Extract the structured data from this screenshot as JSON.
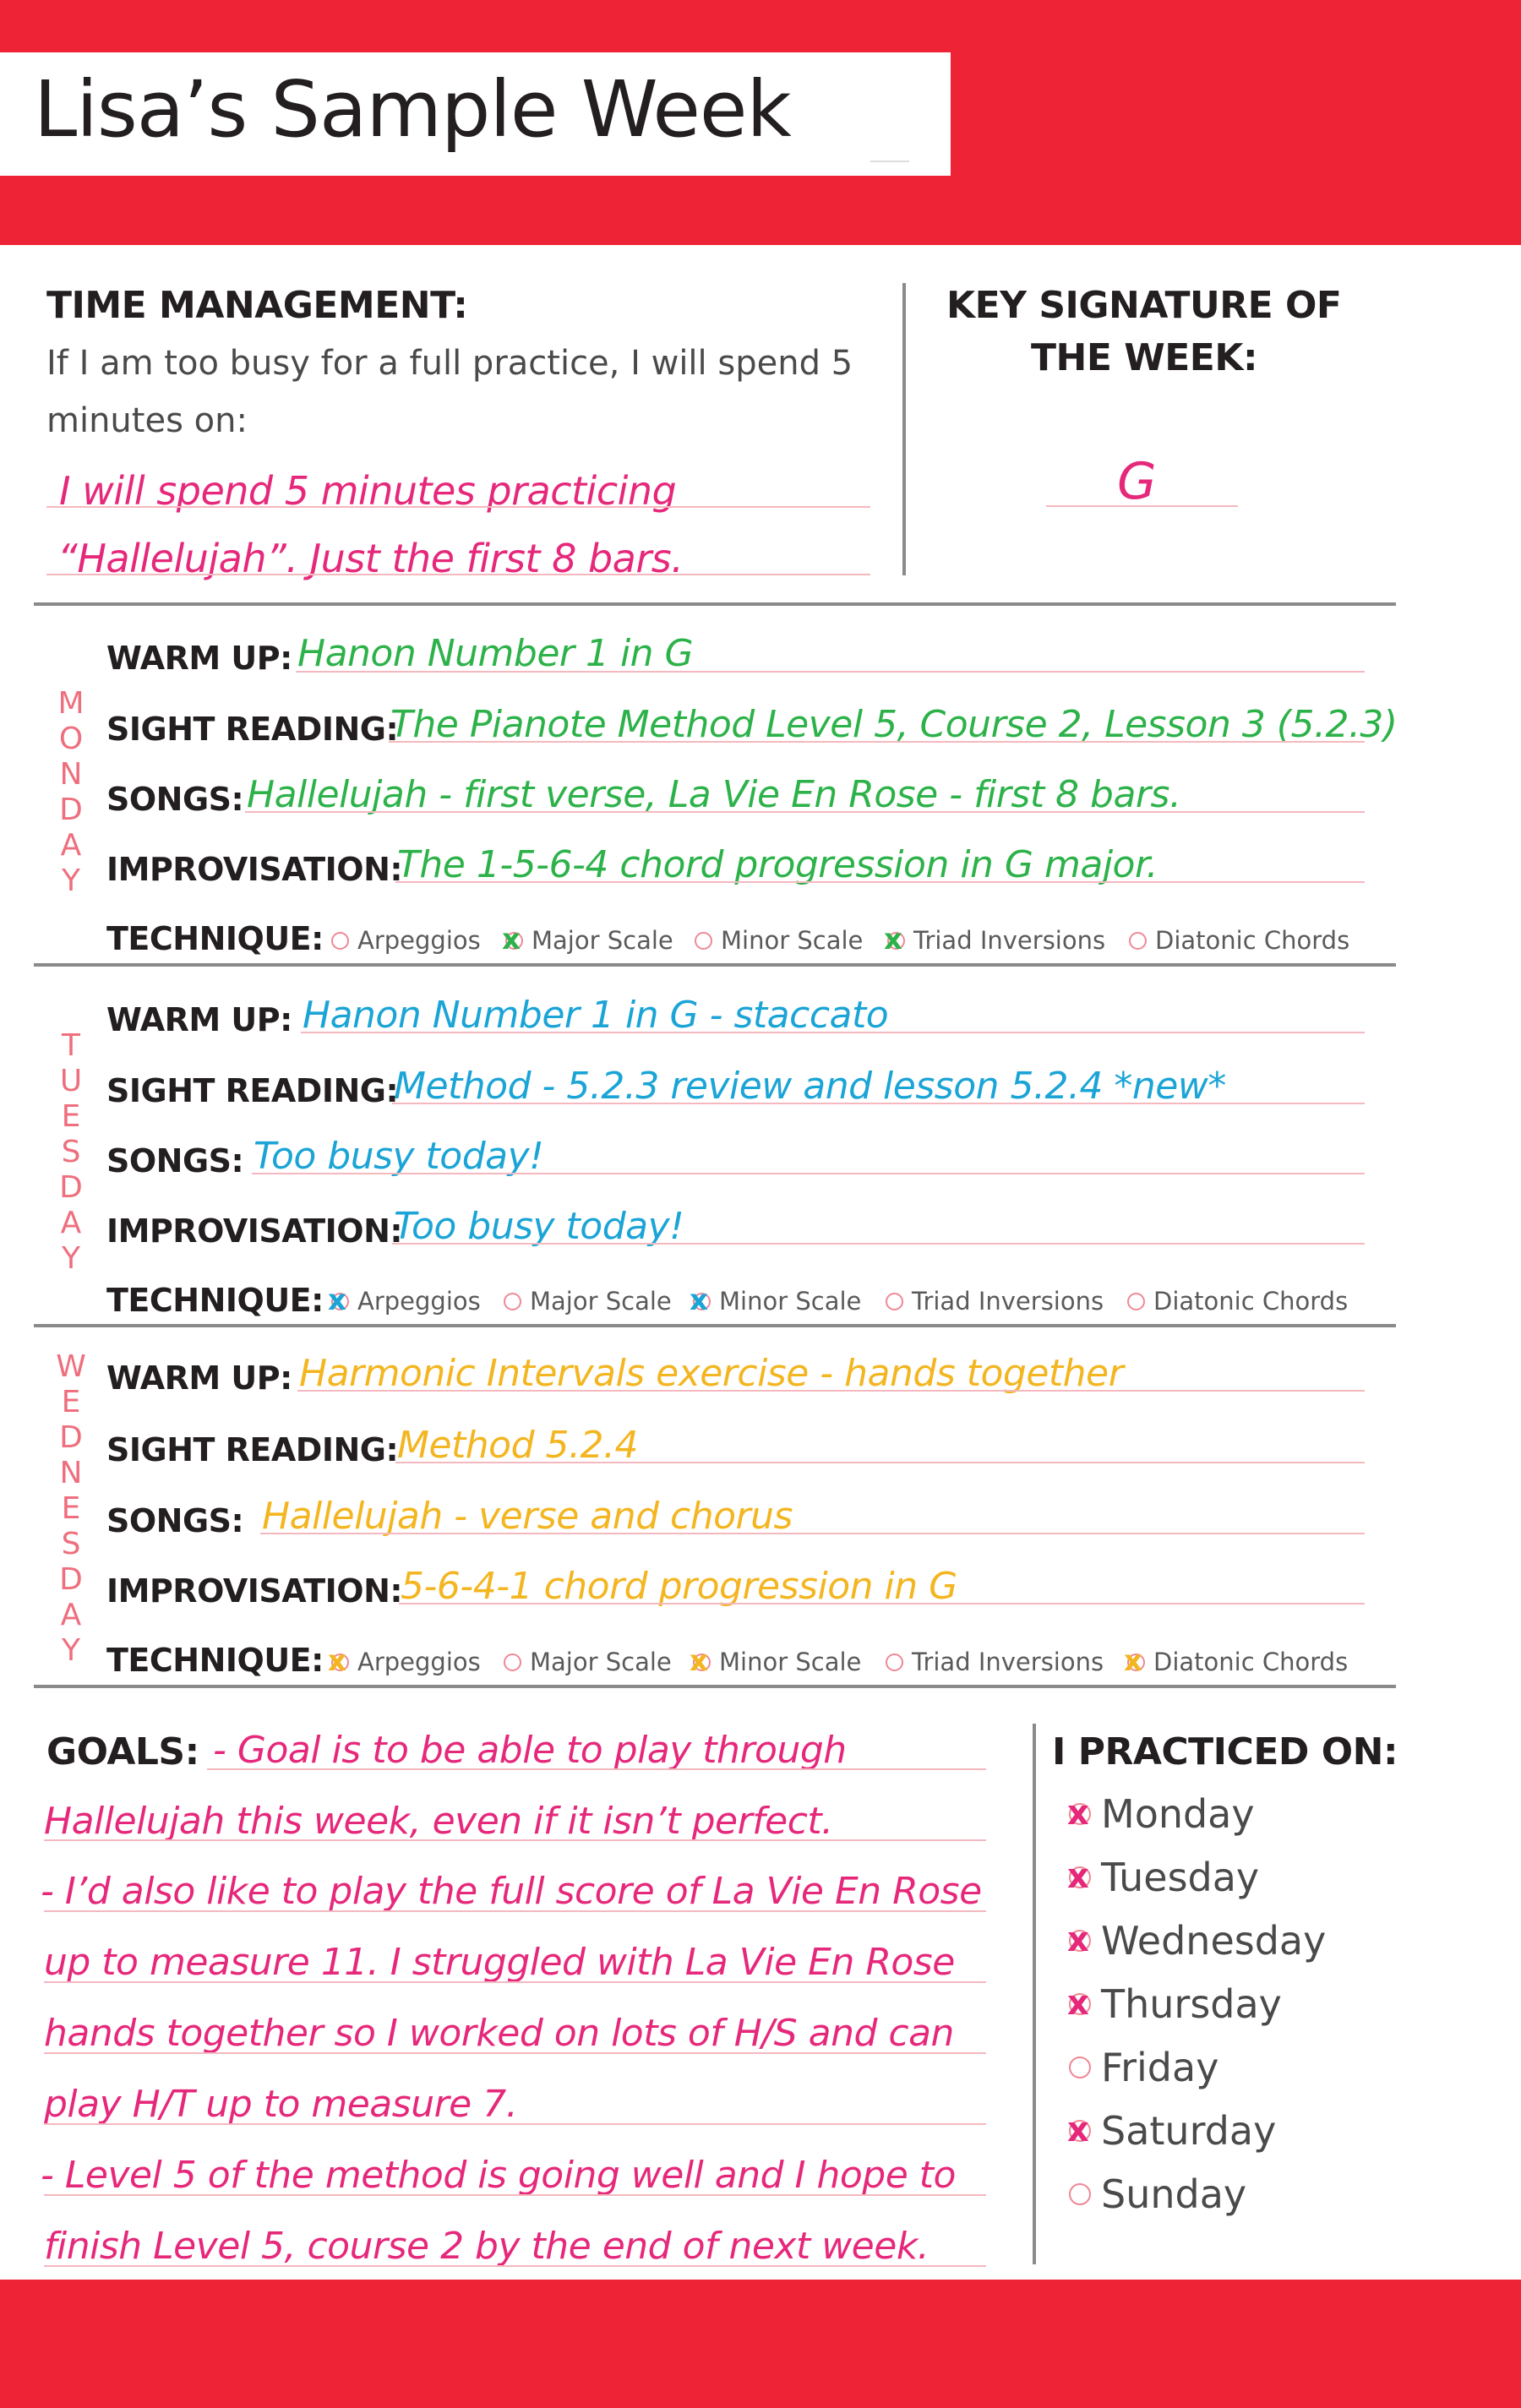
{
  "title": "Lisa’s Sample Week",
  "time_management": {
    "heading": "TIME MANAGEMENT:",
    "prompt_line1": "If I am too busy for a full practice, I will spend 5",
    "prompt_line2": "minutes on:",
    "answer_line1": "I will spend 5 minutes practicing",
    "answer_line2": "“Hallelujah”.  Just the first 8 bars."
  },
  "key_signature": {
    "heading_line1": "KEY SIGNATURE OF",
    "heading_line2": "THE WEEK:",
    "value": "G"
  },
  "labels": {
    "warm_up": "WARM UP:",
    "sight_reading": "SIGHT READING:",
    "songs": "SONGS:",
    "improvisation": "IMPROVISATION:",
    "technique": "TECHNIQUE:"
  },
  "technique_options": [
    "Arpeggios",
    "Major Scale",
    "Minor Scale",
    "Triad Inversions",
    "Diatonic Chords"
  ],
  "days": [
    {
      "name": "MONDAY",
      "color": "#2db24a",
      "warm_up": "Hanon Number 1 in G",
      "sight_reading": "The Pianote Method Level 5, Course 2, Lesson 3 (5.2.3)",
      "songs": "Hallelujah - first verse, La Vie En Rose - first 8 bars.",
      "improvisation": "The 1-5-6-4 chord progression in G major.",
      "technique_checked": [
        false,
        true,
        false,
        true,
        false
      ]
    },
    {
      "name": "TUESDAY",
      "color": "#1ba4d6",
      "warm_up": "Hanon Number 1 in G - staccato",
      "sight_reading": "Method - 5.2.3 review and lesson 5.2.4 *new*",
      "songs": "Too busy today!",
      "improvisation": "Too busy today!",
      "technique_checked": [
        true,
        false,
        true,
        false,
        false
      ]
    },
    {
      "name": "WEDNESDAY",
      "color": "#f3b520",
      "warm_up": "Harmonic Intervals exercise - hands together",
      "sight_reading": "Method 5.2.4",
      "songs": "Hallelujah - verse and chorus",
      "improvisation": "5-6-4-1 chord progression in G",
      "technique_checked": [
        true,
        false,
        true,
        false,
        true
      ]
    }
  ],
  "goals": {
    "heading": "GOALS:",
    "lines": [
      "- Goal is to be able to play through",
      "Hallelujah this week, even if it isn’t perfect.",
      "- I’d also like to play the full score of La Vie En Rose",
      "up to measure 11.   I struggled with La Vie En Rose",
      "hands together so I worked on lots of H/S and can",
      "play H/T up to measure 7.",
      "- Level 5 of the method is going well and I hope to",
      "finish Level 5, course 2 by the end of next week."
    ]
  },
  "practiced": {
    "heading": "I PRACTICED ON:",
    "days": [
      {
        "label": "Monday",
        "checked": true
      },
      {
        "label": "Tuesday",
        "checked": true
      },
      {
        "label": "Wednesday",
        "checked": true
      },
      {
        "label": "Thursday",
        "checked": true
      },
      {
        "label": "Friday",
        "checked": false
      },
      {
        "label": "Saturday",
        "checked": true
      },
      {
        "label": "Sunday",
        "checked": false
      }
    ]
  },
  "colors": {
    "brand_red": "#ee2436",
    "pink_ink": "#e6287b",
    "monday_ink": "#2db24a",
    "tuesday_ink": "#1ba4d6",
    "wednesday_ink": "#f3b520"
  }
}
